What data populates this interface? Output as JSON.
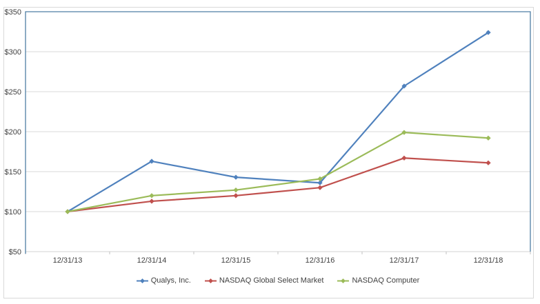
{
  "chart_data": {
    "type": "line",
    "title": "",
    "categories": [
      "12/31/13",
      "12/31/14",
      "12/31/15",
      "12/31/16",
      "12/31/17",
      "12/31/18"
    ],
    "series": [
      {
        "name": "Qualys, Inc.",
        "color": "#4F81BD",
        "values": [
          100,
          163,
          143,
          136,
          257,
          324
        ]
      },
      {
        "name": "NASDAQ Global Select Market",
        "color": "#C0504D",
        "values": [
          100,
          113,
          120,
          130,
          167,
          161
        ]
      },
      {
        "name": "NASDAQ Computer",
        "color": "#9BBB59",
        "values": [
          100,
          120,
          127,
          141,
          199,
          192
        ]
      }
    ],
    "y_axis": {
      "min": 50,
      "max": 350,
      "step": 50,
      "tick_labels": [
        "$50",
        "$100",
        "$150",
        "$200",
        "$250",
        "$300",
        "$350"
      ]
    },
    "ylim": [
      50,
      350
    ],
    "grid": true,
    "marker": "diamond",
    "legend_position": "bottom"
  },
  "style": {
    "gridline_color": "#d9d9d9",
    "axis_line_color": "#d3d3d3",
    "tick_color": "#c0c0c0",
    "plot_border_color": "#4e7ea3",
    "text_color": "#404040",
    "frame_border_color": "#d9d9d9",
    "background_color": "#ffffff"
  }
}
